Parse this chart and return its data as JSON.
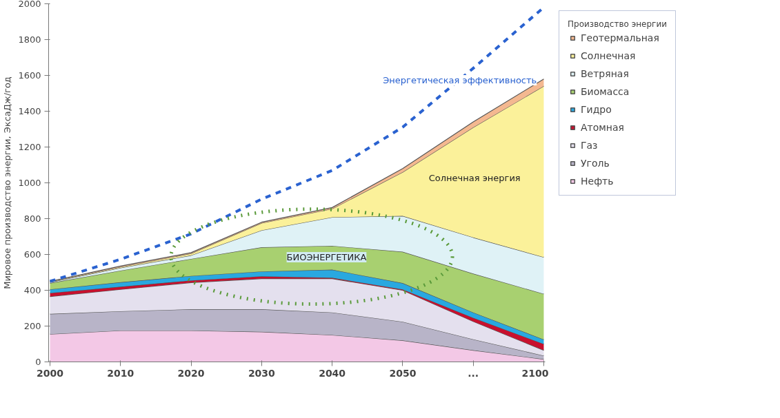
{
  "chart_data": {
    "type": "area",
    "stacked": true,
    "categories": [
      "2000",
      "2010",
      "2020",
      "2030",
      "2040",
      "2050",
      "...",
      "2100"
    ],
    "ylabel": "Мировое производство энергии, ЭксаДж/год",
    "legend_title": "Производство энергии",
    "ylim": [
      0,
      2000
    ],
    "yticks": [
      0,
      200,
      400,
      600,
      800,
      1000,
      1200,
      1400,
      1600,
      1800,
      2000
    ],
    "grid": false,
    "legend": "right",
    "series": [
      {
        "name": "Нефть",
        "color": "#f3c8e6",
        "values": [
          155,
          175,
          175,
          168,
          150,
          120,
          65,
          15
        ]
      },
      {
        "name": "Уголь",
        "color": "#b8b4c8",
        "values": [
          113,
          108,
          119,
          126,
          126,
          104,
          61,
          20
        ]
      },
      {
        "name": "Газ",
        "color": "#e4e0ee",
        "values": [
          97,
          122,
          149,
          171,
          189,
          176,
          100,
          30
        ]
      },
      {
        "name": "Атомная",
        "color": "#c8102e",
        "values": [
          20,
          15,
          12,
          13,
          5,
          5,
          20,
          35
        ]
      },
      {
        "name": "Гидро",
        "color": "#29a8e0",
        "values": [
          20,
          25,
          25,
          27,
          45,
          35,
          30,
          25
        ]
      },
      {
        "name": "Биомасса",
        "color": "#a8d070",
        "values": [
          35,
          65,
          95,
          135,
          133,
          175,
          217,
          255
        ]
      },
      {
        "name": "Ветряная",
        "color": "#dff2f6",
        "values": [
          5,
          15,
          20,
          95,
          160,
          200,
          202,
          205
        ]
      },
      {
        "name": "Солнечная",
        "color": "#fbf19a",
        "values": [
          3,
          5,
          10,
          40,
          47,
          245,
          615,
          955
        ]
      },
      {
        "name": "Геотермальная",
        "color": "#f4b890",
        "values": [
          2,
          5,
          5,
          5,
          7,
          20,
          30,
          40
        ]
      },
      {
        "name": "Энергетическая эффективность",
        "type": "line",
        "line_style": "dashed",
        "color": "#2a62d0",
        "values": [
          450,
          573,
          715,
          909,
          1069,
          1311,
          1640,
          1980
        ]
      }
    ],
    "annotations": [
      "Солнечная энергия",
      "БИОЭНЕРГЕТИКА"
    ]
  }
}
